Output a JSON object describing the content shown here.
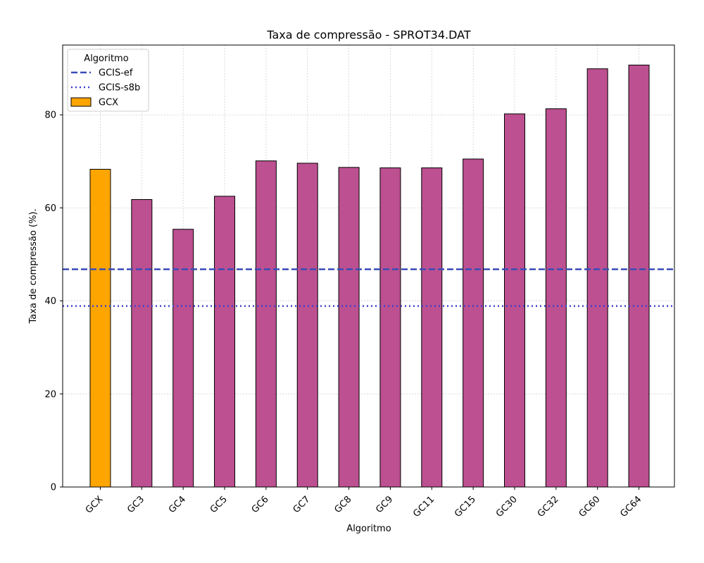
{
  "chart_data": {
    "type": "bar",
    "title": "Taxa de compressão -  SPROT34.DAT",
    "xlabel": "Algoritmo",
    "ylabel": "Taxa de compressão (%).",
    "categories": [
      "GCX",
      "GC3",
      "GC4",
      "GC5",
      "GC6",
      "GC7",
      "GC8",
      "GC9",
      "GC11",
      "GC15",
      "GC30",
      "GC32",
      "GC60",
      "GC64"
    ],
    "values": [
      68.3,
      61.8,
      55.4,
      62.5,
      70.1,
      69.6,
      68.7,
      68.6,
      68.6,
      70.5,
      80.2,
      81.3,
      89.9,
      90.7
    ],
    "bar_colors": [
      "#FFA500",
      "#BC5090",
      "#BC5090",
      "#BC5090",
      "#BC5090",
      "#BC5090",
      "#BC5090",
      "#BC5090",
      "#BC5090",
      "#BC5090",
      "#BC5090",
      "#BC5090",
      "#BC5090",
      "#BC5090"
    ],
    "ylim": [
      0,
      95
    ],
    "yticks": [
      0,
      20,
      40,
      60,
      80
    ],
    "grid": true,
    "reference_lines": [
      {
        "name": "GCIS-ef",
        "value": 46.8,
        "style": "dashed",
        "color": "#3A4CB8"
      },
      {
        "name": "GCIS-s8b",
        "value": 38.9,
        "style": "dotted",
        "color": "#4040CC"
      }
    ],
    "legend": {
      "title": "Algoritmo",
      "placement": "top-left",
      "entries": [
        {
          "label": "GCIS-ef",
          "kind": "dashed-line",
          "color": "#3A4CB8"
        },
        {
          "label": "GCIS-s8b",
          "kind": "dotted-line",
          "color": "#4040CC"
        },
        {
          "label": "GCX",
          "kind": "patch",
          "color": "#FFA500"
        }
      ]
    }
  }
}
